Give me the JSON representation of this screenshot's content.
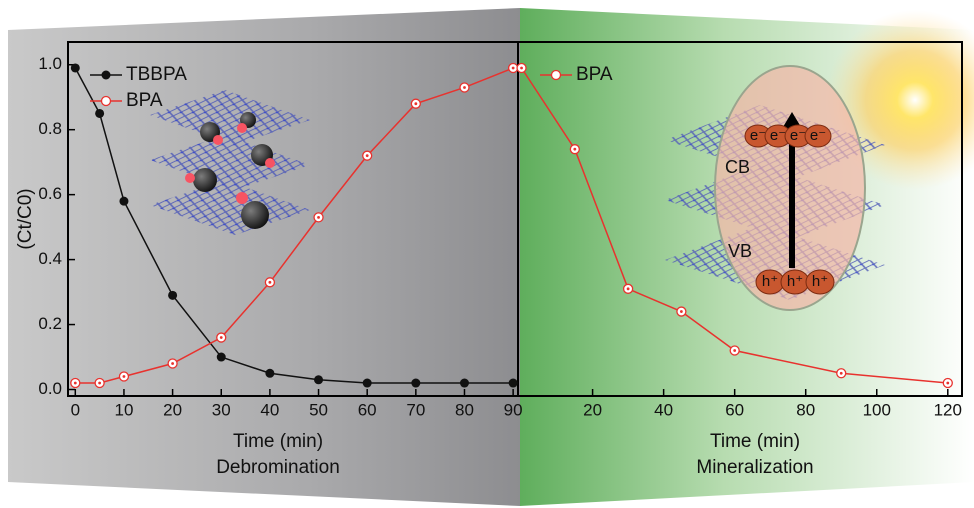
{
  "chart_data": [
    {
      "type": "line",
      "x_label": "Time (min)",
      "subtitle": "Debromination",
      "y_label": "(Ct/C0)",
      "x": [
        0,
        5,
        10,
        20,
        30,
        40,
        50,
        60,
        70,
        80,
        90
      ],
      "series": [
        {
          "name": "TBBPA",
          "color": "#111111",
          "marker": "filled",
          "values": [
            0.99,
            0.85,
            0.58,
            0.29,
            0.1,
            0.05,
            0.03,
            0.02,
            0.02,
            0.02,
            0.02
          ]
        },
        {
          "name": "BPA",
          "color": "#e8322e",
          "marker": "open",
          "values": [
            0.02,
            0.02,
            0.04,
            0.08,
            0.16,
            0.33,
            0.53,
            0.72,
            0.88,
            0.93,
            0.99
          ]
        }
      ],
      "xlim": [
        -1.5,
        91
      ],
      "ylim": [
        -0.02,
        1.07
      ],
      "xticks": [
        0,
        10,
        20,
        30,
        40,
        50,
        60,
        70,
        80,
        90
      ],
      "yticks": [
        {
          "value": 0,
          "label": "0.0"
        },
        0.2,
        0.4,
        0.6,
        0.8,
        {
          "value": 1,
          "label": "1.0"
        }
      ]
    },
    {
      "type": "line",
      "x_label": "Time (min)",
      "subtitle": "Mineralization",
      "x": [
        0,
        15,
        30,
        45,
        60,
        90,
        120
      ],
      "series": [
        {
          "name": "BPA",
          "color": "#e8322e",
          "marker": "open",
          "values": [
            0.99,
            0.74,
            0.31,
            0.24,
            0.12,
            0.05,
            0.02
          ]
        }
      ],
      "xlim": [
        -1,
        124
      ],
      "ylim": [
        -0.02,
        1.07
      ],
      "xticks": [
        20,
        40,
        60,
        80,
        100,
        120
      ]
    }
  ],
  "illustration": {
    "cb": "CB",
    "vb": "VB",
    "electron": "e⁻",
    "hole": "h⁺"
  }
}
